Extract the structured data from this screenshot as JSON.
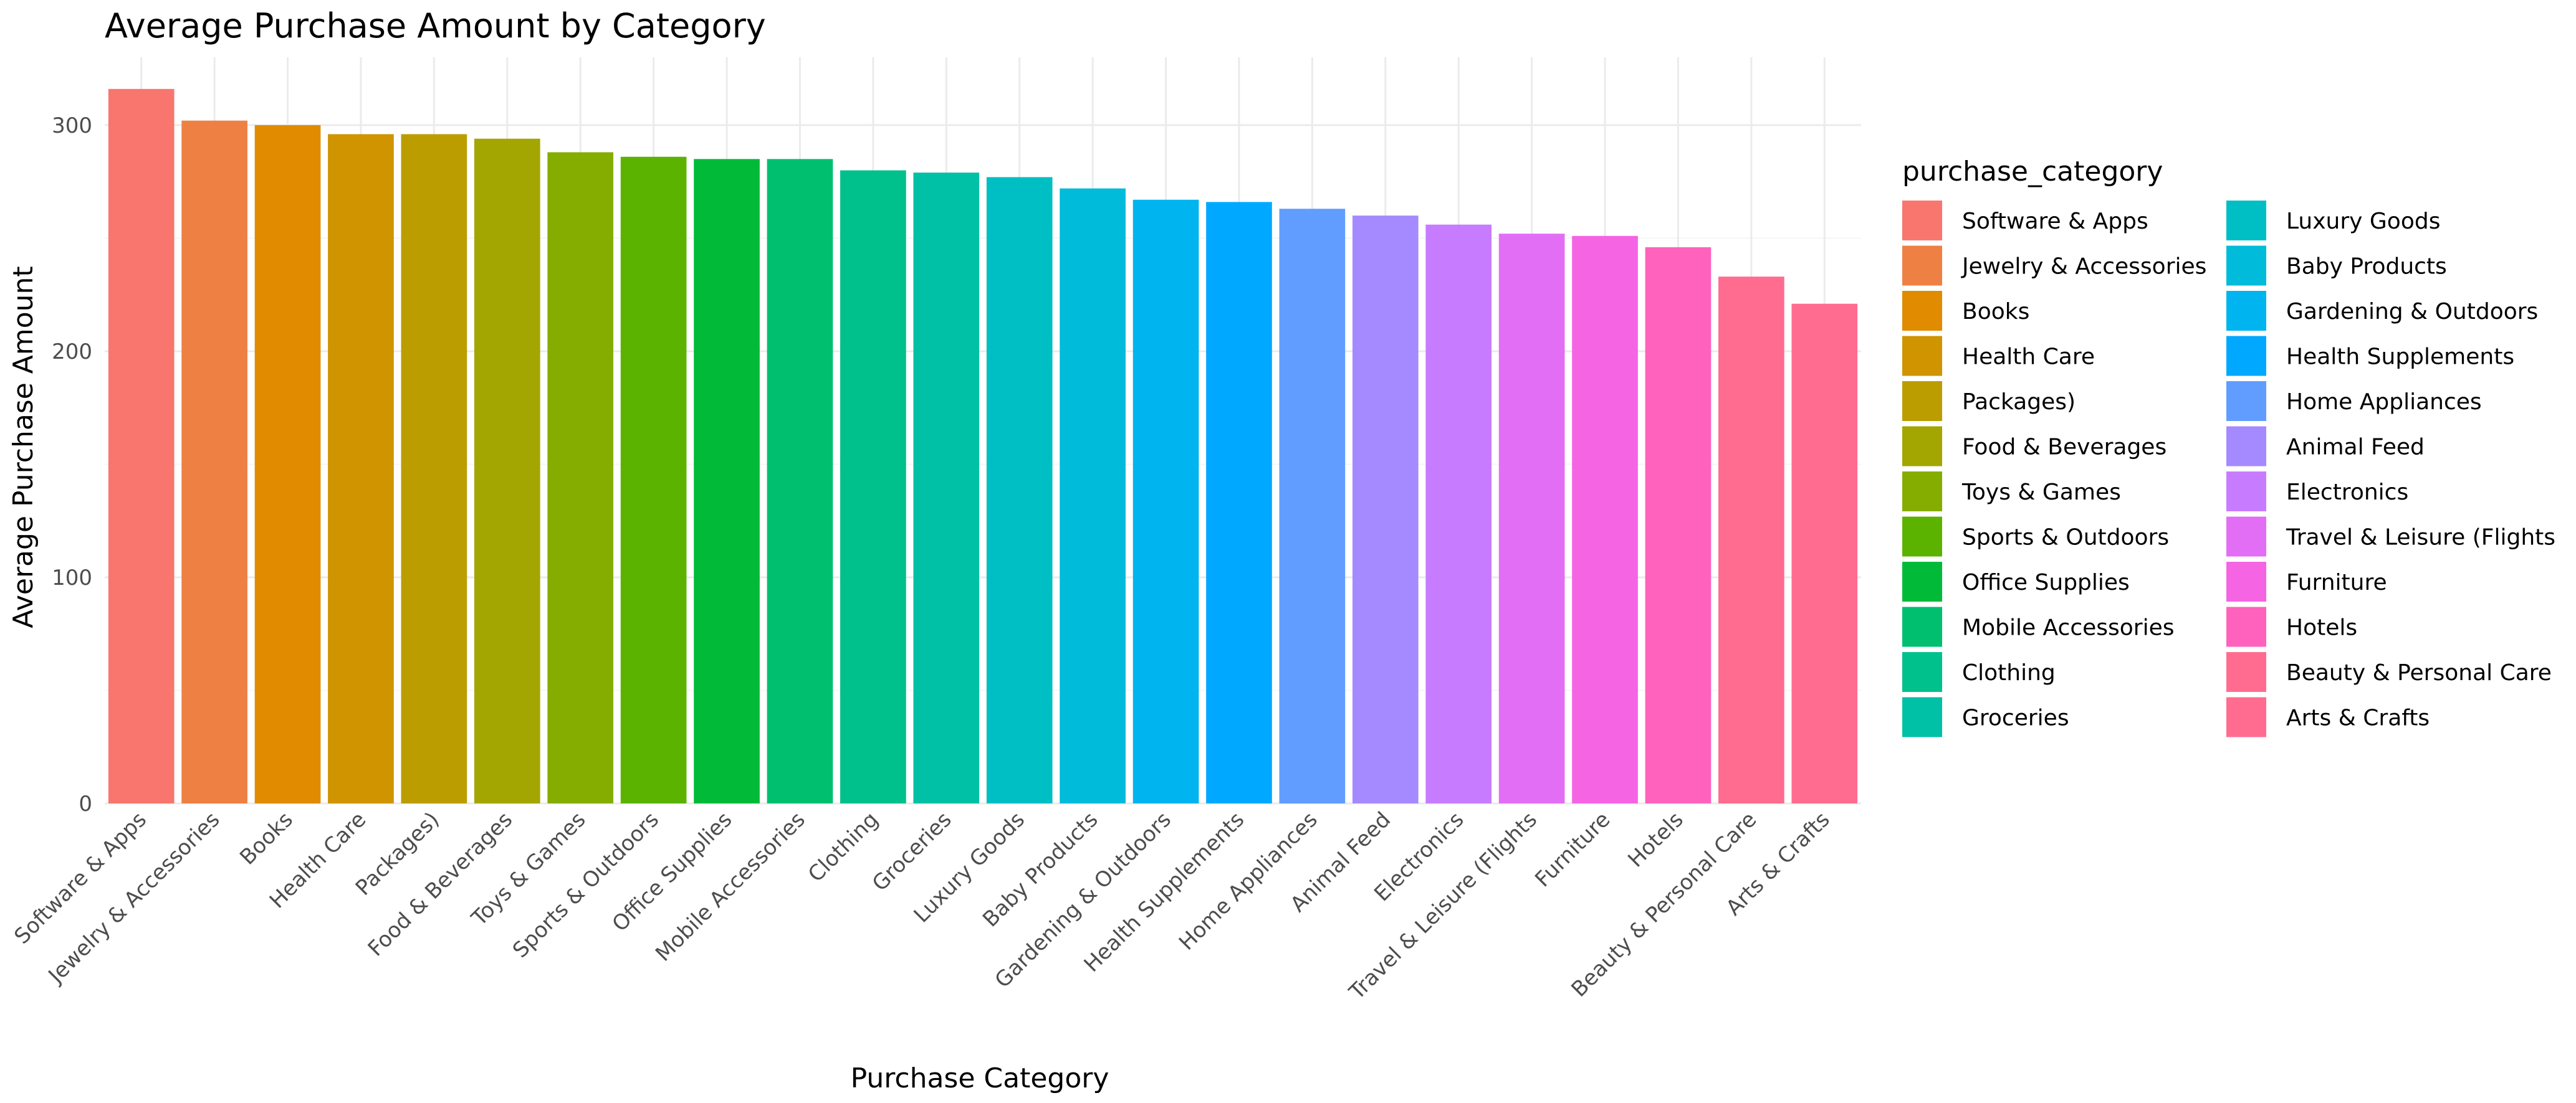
{
  "chart_data": {
    "type": "bar",
    "title": "Average Purchase Amount by Category",
    "xlabel": "Purchase Category",
    "ylabel": "Average Purchase Amount",
    "ylim": [
      0,
      330
    ],
    "yticks": [
      0,
      100,
      200,
      300
    ],
    "grid": true,
    "legend_title": "purchase_category",
    "legend_position": "right",
    "categories": [
      "Software & Apps",
      "Jewelry & Accessories",
      "Books",
      "Health Care",
      "Packages)",
      "Food & Beverages",
      "Toys & Games",
      "Sports & Outdoors",
      "Office Supplies",
      "Mobile Accessories",
      "Clothing",
      "Groceries",
      "Luxury Goods",
      "Baby Products",
      "Gardening & Outdoors",
      "Health Supplements",
      "Home Appliances",
      "Animal Feed",
      "Electronics",
      "Travel & Leisure (Flights",
      "Furniture",
      "Hotels",
      "Beauty & Personal Care",
      "Arts & Crafts"
    ],
    "values": [
      316,
      302,
      300,
      296,
      296,
      294,
      288,
      286,
      285,
      285,
      280,
      279,
      277,
      272,
      267,
      266,
      263,
      260,
      256,
      252,
      251,
      246,
      233,
      221
    ],
    "colors": [
      "#F8766D",
      "#EE8044",
      "#E08B00",
      "#CF9400",
      "#BB9D00",
      "#A3A500",
      "#85AD00",
      "#5BB300",
      "#00BA38",
      "#00BF6F",
      "#00C08B",
      "#00C0A5",
      "#00BFC4",
      "#00BBDA",
      "#00B4EF",
      "#00A9FF",
      "#619CFF",
      "#A58AFF",
      "#C77CFF",
      "#E36EF6",
      "#F564E3",
      "#FF62BC",
      "#FF6C90",
      "#FF6C90"
    ]
  }
}
